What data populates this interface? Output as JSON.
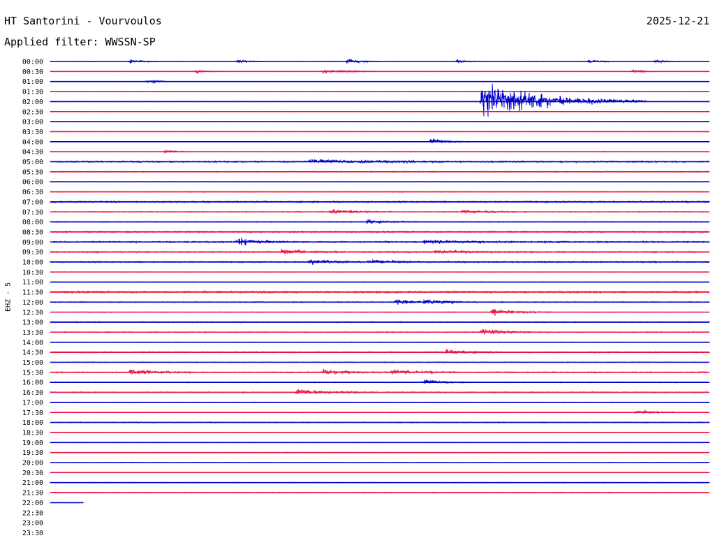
{
  "header": {
    "title": "HT Santorini - Vourvoulos",
    "date": "2025-12-21",
    "filter": "Applied filter: WWSSN-SP"
  },
  "channel_label": "EHZ - 5",
  "colors": {
    "even_hour": "#0000cc",
    "odd_half_hour": "#ee1144",
    "text": "#000000"
  },
  "chart_data": {
    "type": "line",
    "subtype": "helicorder",
    "title": "HT Santorini - Vourvoulos",
    "ylabel": "EHZ - 5",
    "row_labels": [
      "00:00",
      "00:30",
      "01:00",
      "01:30",
      "02:00",
      "02:30",
      "03:00",
      "03:30",
      "04:00",
      "04:30",
      "05:00",
      "05:30",
      "06:00",
      "06:30",
      "07:00",
      "07:30",
      "08:00",
      "08:30",
      "09:00",
      "09:30",
      "10:00",
      "10:30",
      "11:00",
      "11:30",
      "12:00",
      "12:30",
      "13:00",
      "13:30",
      "14:00",
      "14:30",
      "15:00",
      "15:30",
      "16:00",
      "16:30",
      "17:00",
      "17:30",
      "18:00",
      "18:30",
      "19:00",
      "19:30",
      "20:00",
      "20:30",
      "21:00",
      "21:30",
      "22:00",
      "22:30",
      "23:00",
      "23:30"
    ],
    "minutes_per_row": 30,
    "rows_recorded": 45,
    "last_row_fraction": 0.05,
    "row_noise": [
      0.3,
      0.3,
      0.3,
      0.3,
      0.3,
      0.5,
      0.2,
      0.2,
      0.3,
      0.5,
      1.2,
      0.8,
      0.4,
      0.6,
      1.2,
      0.8,
      0.6,
      1.2,
      1.2,
      1.1,
      1.0,
      0.6,
      0.5,
      1.4,
      0.8,
      0.6,
      0.7,
      0.8,
      0.5,
      0.9,
      0.6,
      0.9,
      0.6,
      0.9,
      0.5,
      0.5,
      0.7,
      0.3,
      0.4,
      0.5,
      0.4,
      0.2,
      0.5,
      0.6,
      0.2
    ],
    "events": [
      {
        "row": 0,
        "min": 3.6,
        "amp": 4,
        "dur": 0.4
      },
      {
        "row": 0,
        "min": 8.5,
        "amp": 4,
        "dur": 0.4
      },
      {
        "row": 0,
        "min": 13.5,
        "amp": 5,
        "dur": 0.5
      },
      {
        "row": 0,
        "min": 18.5,
        "amp": 4,
        "dur": 0.4
      },
      {
        "row": 0,
        "min": 24.5,
        "amp": 4,
        "dur": 0.4
      },
      {
        "row": 0,
        "min": 27.5,
        "amp": 4,
        "dur": 0.4
      },
      {
        "row": 1,
        "min": 6.6,
        "amp": 4,
        "dur": 0.5
      },
      {
        "row": 1,
        "min": 12.4,
        "amp": 5,
        "dur": 1.0
      },
      {
        "row": 1,
        "min": 26.5,
        "amp": 4,
        "dur": 0.4
      },
      {
        "row": 2,
        "min": 4.4,
        "amp": 3,
        "dur": 0.5
      },
      {
        "row": 4,
        "min": 19.6,
        "amp": 42,
        "dur": 2.5
      },
      {
        "row": 8,
        "min": 17.3,
        "amp": 8,
        "dur": 0.6
      },
      {
        "row": 9,
        "min": 5.2,
        "amp": 3,
        "dur": 0.4
      },
      {
        "row": 10,
        "min": 11.8,
        "amp": 4,
        "dur": 2.0
      },
      {
        "row": 10,
        "min": 15.2,
        "amp": 2,
        "dur": 1.0
      },
      {
        "row": 15,
        "min": 12.7,
        "amp": 5,
        "dur": 1.0
      },
      {
        "row": 15,
        "min": 18.7,
        "amp": 3,
        "dur": 1.0
      },
      {
        "row": 16,
        "min": 14.4,
        "amp": 5,
        "dur": 0.8
      },
      {
        "row": 18,
        "min": 8.5,
        "amp": 8,
        "dur": 0.9
      },
      {
        "row": 18,
        "min": 17.0,
        "amp": 3,
        "dur": 2.0
      },
      {
        "row": 19,
        "min": 10.5,
        "amp": 5,
        "dur": 1.0
      },
      {
        "row": 19,
        "min": 17.5,
        "amp": 3,
        "dur": 1.5
      },
      {
        "row": 20,
        "min": 11.8,
        "amp": 7,
        "dur": 0.8
      },
      {
        "row": 20,
        "min": 14.5,
        "amp": 4,
        "dur": 1.0
      },
      {
        "row": 24,
        "min": 15.7,
        "amp": 5,
        "dur": 1.0
      },
      {
        "row": 24,
        "min": 17.0,
        "amp": 4,
        "dur": 0.9
      },
      {
        "row": 25,
        "min": 20.1,
        "amp": 7,
        "dur": 0.9
      },
      {
        "row": 27,
        "min": 19.6,
        "amp": 8,
        "dur": 0.8
      },
      {
        "row": 29,
        "min": 18.0,
        "amp": 6,
        "dur": 0.8
      },
      {
        "row": 31,
        "min": 3.6,
        "amp": 6,
        "dur": 1.0
      },
      {
        "row": 31,
        "min": 12.4,
        "amp": 6,
        "dur": 1.0
      },
      {
        "row": 31,
        "min": 15.5,
        "amp": 5,
        "dur": 1.0
      },
      {
        "row": 32,
        "min": 17.0,
        "amp": 6,
        "dur": 0.6
      },
      {
        "row": 33,
        "min": 11.2,
        "amp": 6,
        "dur": 1.2
      },
      {
        "row": 35,
        "min": 26.6,
        "amp": 4,
        "dur": 0.8
      }
    ]
  }
}
